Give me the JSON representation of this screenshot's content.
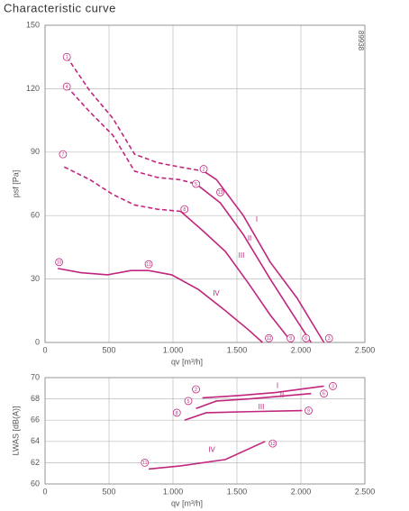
{
  "chart_data": [
    {
      "type": "line",
      "title": "Characteristic curve",
      "note": "89938",
      "x_label": "qv [m³/h]",
      "y_label": "psf [Pa]",
      "color": "#c0267d",
      "grid": true,
      "xlim": [
        0,
        2500
      ],
      "xticks": [
        0,
        500,
        {
          "value": 1000,
          "label": "1.000"
        },
        {
          "value": 1500,
          "label": "1.500"
        },
        {
          "value": 2000,
          "label": "2.000"
        },
        {
          "value": 2500,
          "label": "2.500"
        }
      ],
      "ylim": [
        0,
        150
      ],
      "yticks": [
        0,
        30,
        60,
        90,
        120,
        150
      ],
      "series": [
        {
          "name": "I",
          "label_x": 1655,
          "label_y": 58,
          "segments": [
            {
              "style": "dashed",
              "x": [
                170,
                350,
                530,
                700,
                880,
                1050,
                1240
              ],
              "values": [
                135,
                119,
                106,
                89,
                85,
                83,
                81
              ]
            },
            {
              "style": "solid",
              "x": [
                1240,
                1340,
                1550,
                1760,
                1970,
                2180
              ],
              "values": [
                81,
                77,
                60,
                38,
                21,
                0
              ]
            }
          ]
        },
        {
          "name": "II",
          "label_x": 1599,
          "label_y": 49,
          "segments": [
            {
              "style": "dashed",
              "x": [
                170,
                350,
                530,
                700,
                880,
                1050,
                1180
              ],
              "values": [
                121,
                109,
                98,
                81,
                78,
                77,
                75
              ]
            },
            {
              "style": "solid",
              "x": [
                1180,
                1370,
                1550,
                1760,
                1940,
                2080
              ],
              "values": [
                75,
                66,
                51,
                30,
                13,
                0
              ]
            }
          ]
        },
        {
          "name": "III",
          "label_x": 1535,
          "label_y": 41,
          "segments": [
            {
              "style": "dashed",
              "x": [
                150,
                350,
                530,
                700,
                880,
                1060
              ],
              "values": [
                83,
                77,
                70,
                65,
                63,
                62
              ]
            },
            {
              "style": "solid",
              "x": [
                1060,
                1230,
                1410,
                1590,
                1760,
                1930
              ],
              "values": [
                62,
                53,
                43,
                28,
                13,
                0
              ]
            }
          ]
        },
        {
          "name": "IV",
          "label_x": 1338,
          "label_y": 23,
          "segments": [
            {
              "style": "solid",
              "x": [
                100,
                280,
                490,
                670,
                810,
                990,
                1200,
                1410,
                1590,
                1700
              ],
              "values": [
                35,
                33,
                32,
                34,
                34,
                32,
                25,
                15,
                6,
                0
              ]
            }
          ]
        }
      ],
      "annotations": [
        {
          "label": "1",
          "x": 170,
          "y": 135
        },
        {
          "label": "4",
          "x": 170,
          "y": 121
        },
        {
          "label": "7",
          "x": 140,
          "y": 89
        },
        {
          "label": "2",
          "x": 1240,
          "y": 82
        },
        {
          "label": "5",
          "x": 1180,
          "y": 75
        },
        {
          "label": "8",
          "x": 1090,
          "y": 63
        },
        {
          "label": "13",
          "x": 1370,
          "y": 71
        },
        {
          "label": "10",
          "x": 110,
          "y": 38
        },
        {
          "label": "11",
          "x": 810,
          "y": 37
        },
        {
          "label": "12",
          "x": 1750,
          "y": 2
        },
        {
          "label": "9",
          "x": 1920,
          "y": 2
        },
        {
          "label": "6",
          "x": 2040,
          "y": 2
        },
        {
          "label": "3",
          "x": 2220,
          "y": 2
        }
      ]
    },
    {
      "type": "line",
      "x_label": "qv [m³/h]",
      "y_label": "LWAS [dB(A)]",
      "color": "#c0267d",
      "grid": true,
      "xlim": [
        0,
        2500
      ],
      "xticks": [
        0,
        500,
        {
          "value": 1000,
          "label": "1.000"
        },
        {
          "value": 1500,
          "label": "1.500"
        },
        {
          "value": 2000,
          "label": "2.000"
        },
        {
          "value": 2500,
          "label": "2.500"
        }
      ],
      "ylim": [
        60,
        70
      ],
      "yticks": [
        60,
        62,
        64,
        66,
        68,
        70
      ],
      "series": [
        {
          "name": "I",
          "label_x": 1817,
          "label_y": 69.2,
          "segments": [
            {
              "style": "solid",
              "x": [
                1230,
                1500,
                1800,
                2180
              ],
              "values": [
                68.1,
                68.3,
                68.6,
                69.2
              ]
            }
          ]
        },
        {
          "name": "II",
          "label_x": 1852,
          "label_y": 68.3,
          "segments": [
            {
              "style": "solid",
              "x": [
                1180,
                1340,
                1600,
                2080
              ],
              "values": [
                67.1,
                67.8,
                68.0,
                68.5
              ]
            }
          ]
        },
        {
          "name": "III",
          "label_x": 1690,
          "label_y": 67.2,
          "segments": [
            {
              "style": "solid",
              "x": [
                1090,
                1260,
                1600,
                2010
              ],
              "values": [
                66.0,
                66.7,
                66.8,
                66.9
              ]
            }
          ]
        },
        {
          "name": "IV",
          "label_x": 1303,
          "label_y": 63.2,
          "segments": [
            {
              "style": "solid",
              "x": [
                810,
                1060,
                1410,
                1720
              ],
              "values": [
                61.4,
                61.7,
                62.3,
                64.0
              ]
            }
          ]
        }
      ],
      "annotations": [
        {
          "label": "2",
          "x": 1180,
          "y": 68.9
        },
        {
          "label": "3",
          "x": 2250,
          "y": 69.2
        },
        {
          "label": "5",
          "x": 1120,
          "y": 67.8
        },
        {
          "label": "6",
          "x": 2180,
          "y": 68.5
        },
        {
          "label": "8",
          "x": 1030,
          "y": 66.7
        },
        {
          "label": "9",
          "x": 2060,
          "y": 66.9
        },
        {
          "label": "11",
          "x": 780,
          "y": 62.0
        },
        {
          "label": "12",
          "x": 1780,
          "y": 63.8
        }
      ]
    }
  ]
}
